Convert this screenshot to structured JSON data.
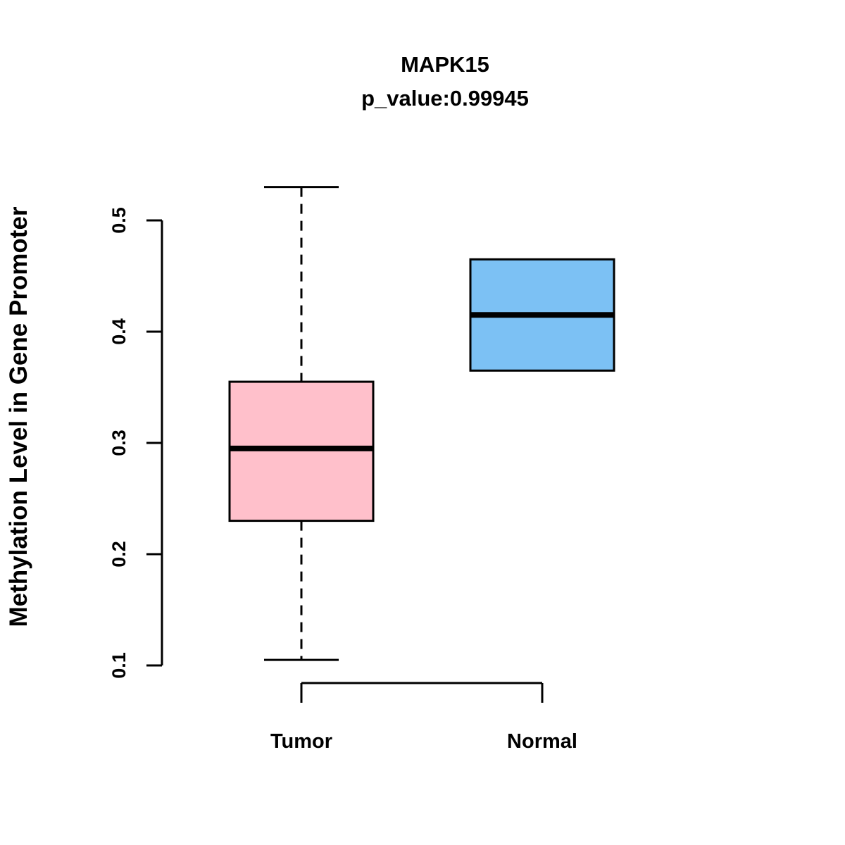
{
  "chart_data": {
    "type": "boxplot",
    "title": "MAPK15",
    "subtitle": "p_value:0.99945",
    "ylabel": "Methylation Level in Gene Promoter",
    "xlabel": "",
    "categories": [
      "Tumor",
      "Normal"
    ],
    "y_ticks": [
      0.1,
      0.2,
      0.3,
      0.4,
      0.5
    ],
    "ylim": [
      0.08,
      0.54
    ],
    "grid": false,
    "legend": "none",
    "series": [
      {
        "name": "Tumor",
        "box_color": "#FFC0CB",
        "border_color": "#000000",
        "min": 0.105,
        "q1": 0.23,
        "median": 0.295,
        "q3": 0.355,
        "max": 0.53,
        "whisker_style": "dashed"
      },
      {
        "name": "Normal",
        "box_color": "#7CC1F4",
        "border_color": "#000000",
        "min": 0.365,
        "q1": 0.365,
        "median": 0.415,
        "q3": 0.465,
        "max": 0.465,
        "whisker_style": "none"
      }
    ]
  }
}
